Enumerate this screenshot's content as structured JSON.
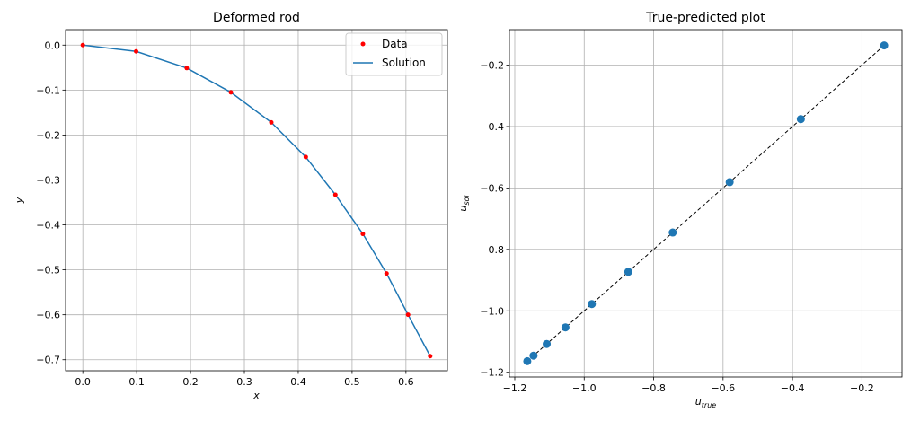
{
  "chart_data": [
    {
      "type": "line",
      "title": "Deformed rod",
      "xlabel": "x",
      "ylabel": "y",
      "xlim": [
        -0.032,
        0.677
      ],
      "ylim": [
        -0.7245,
        0.0345
      ],
      "xticks": [
        0.0,
        0.1,
        0.2,
        0.3,
        0.4,
        0.5,
        0.6
      ],
      "xtick_labels": [
        "0.0",
        "0.1",
        "0.2",
        "0.3",
        "0.4",
        "0.5",
        "0.6"
      ],
      "yticks": [
        0.0,
        -0.1,
        -0.2,
        -0.3,
        -0.4,
        -0.5,
        -0.6,
        -0.7
      ],
      "ytick_labels": [
        "0.0",
        "−0.1",
        "−0.2",
        "−0.3",
        "−0.4",
        "−0.5",
        "−0.6",
        "−0.7"
      ],
      "grid": true,
      "legend": "top-right",
      "series": [
        {
          "name": "Data",
          "kind": "scatter",
          "color": "#ff0000",
          "x": [
            0.0,
            0.099,
            0.193,
            0.275,
            0.35,
            0.414,
            0.469,
            0.52,
            0.564,
            0.604,
            0.645
          ],
          "y": [
            0.0,
            -0.014,
            -0.051,
            -0.105,
            -0.172,
            -0.249,
            -0.333,
            -0.42,
            -0.508,
            -0.6,
            -0.692
          ]
        },
        {
          "name": "Solution",
          "kind": "line",
          "color": "#1f77b4",
          "x": [
            0.0,
            0.099,
            0.193,
            0.275,
            0.35,
            0.414,
            0.469,
            0.52,
            0.564,
            0.604,
            0.645
          ],
          "y": [
            0.0,
            -0.014,
            -0.051,
            -0.105,
            -0.172,
            -0.249,
            -0.333,
            -0.42,
            -0.508,
            -0.6,
            -0.692
          ]
        }
      ]
    },
    {
      "type": "scatter",
      "title": "True-predicted plot",
      "xlabel": "u_true",
      "xlabel_base": "u",
      "xlabel_sub": "true",
      "ylabel": "u_sol",
      "ylabel_base": "u",
      "ylabel_sub": "sol",
      "xlim": [
        -1.2155,
        -0.0845
      ],
      "ylim": [
        -1.2155,
        -0.0845
      ],
      "xticks": [
        -1.2,
        -1.0,
        -0.8,
        -0.6,
        -0.4,
        -0.2
      ],
      "xtick_labels": [
        "−1.2",
        "−1.0",
        "−0.8",
        "−0.6",
        "−0.4",
        "−0.2"
      ],
      "yticks": [
        -1.2,
        -1.0,
        -0.8,
        -0.6,
        -0.4,
        -0.2
      ],
      "ytick_labels": [
        "−1.2",
        "−1.0",
        "−0.8",
        "−0.6",
        "−0.4",
        "−0.2"
      ],
      "grid": true,
      "reference_line": {
        "x": [
          -1.164,
          -0.136
        ],
        "y": [
          -1.164,
          -0.136
        ],
        "color": "#000000",
        "style": "dashed"
      },
      "series": [
        {
          "color": "#1f77b4",
          "x": [
            -1.164,
            -1.146,
            -1.108,
            -1.054,
            -0.978,
            -0.873,
            -0.745,
            -0.581,
            -0.376,
            -0.136
          ],
          "y": [
            -1.164,
            -1.146,
            -1.108,
            -1.054,
            -0.978,
            -0.873,
            -0.745,
            -0.581,
            -0.376,
            -0.136
          ]
        }
      ]
    }
  ]
}
